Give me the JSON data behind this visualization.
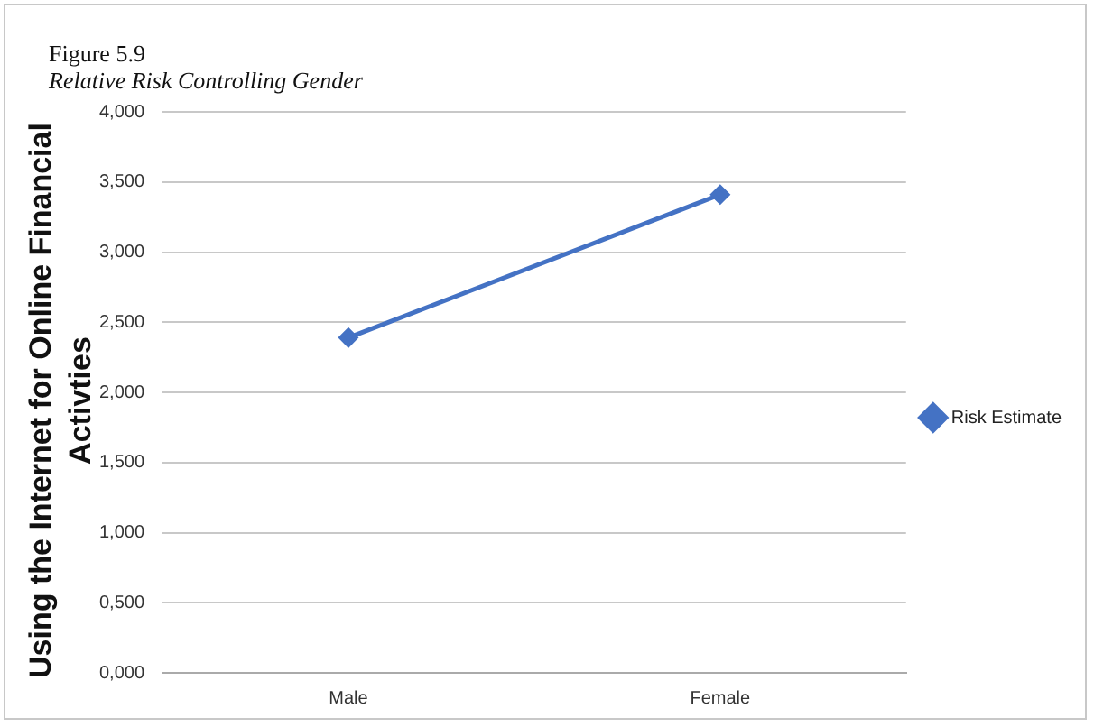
{
  "chart_data": {
    "type": "line",
    "title": "Figure 5.9",
    "subtitle": "Relative Risk Controlling Gender",
    "ylabel": "Using the Internet for Online Financial Activties",
    "categories": [
      "Male",
      "Female"
    ],
    "series": [
      {
        "name": "Risk Estimate",
        "color": "#4472c4",
        "values": [
          2.39,
          3.41
        ]
      }
    ],
    "ylim": [
      0,
      4
    ],
    "yticks": [
      {
        "value": 0,
        "label": "0,000"
      },
      {
        "value": 0.5,
        "label": "0,500"
      },
      {
        "value": 1,
        "label": "1,000"
      },
      {
        "value": 1.5,
        "label": "1,500"
      },
      {
        "value": 2,
        "label": "2,000"
      },
      {
        "value": 2.5,
        "label": "2,500"
      },
      {
        "value": 3,
        "label": "3,000"
      },
      {
        "value": 3.5,
        "label": "3,500"
      },
      {
        "value": 4,
        "label": "4,000"
      }
    ],
    "grid": "y",
    "legend": "right",
    "marker": "diamond",
    "line_style": "solid"
  }
}
